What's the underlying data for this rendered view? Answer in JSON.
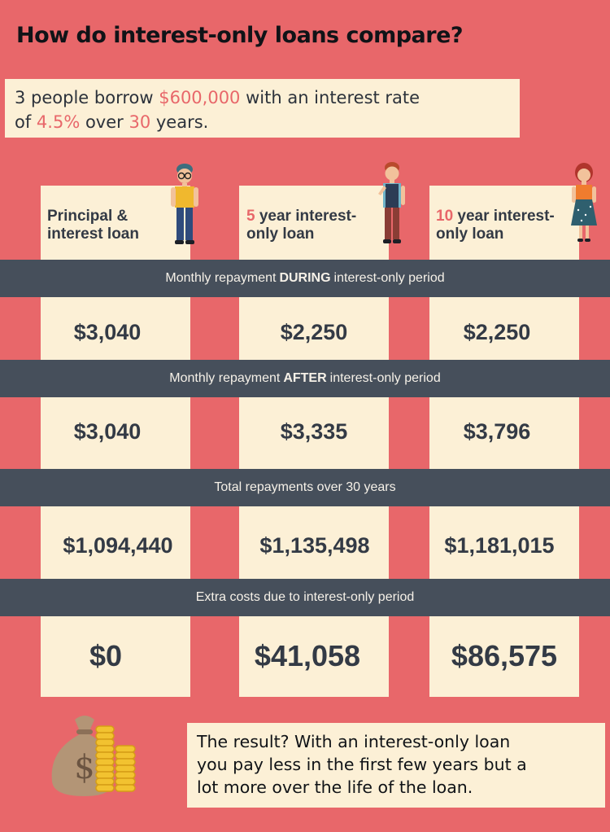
{
  "title": "How do interest-only loans compare?",
  "intro": {
    "part1": "3 people borrow ",
    "amount": "$600,000",
    "part2": " with an interest rate",
    "part3": "of ",
    "rate": "4.5%",
    "part4": " over ",
    "years": "30",
    "part5": " years."
  },
  "columns": {
    "col1": {
      "line1": "Principal &",
      "line2": "interest loan"
    },
    "col2": {
      "accent": "5",
      "line1_rest": " year interest-",
      "line2": "only loan"
    },
    "col3": {
      "accent": "10",
      "line1_rest": " year interest-",
      "line2": "only loan"
    }
  },
  "bands": {
    "during": {
      "pre": "Monthly repayment",
      "bold": "DURING",
      "post": "interest-only period"
    },
    "after": {
      "pre": "Monthly repayment",
      "bold": "AFTER",
      "post": "interest-only period"
    },
    "total": "Total repayments over 30 years",
    "extra": "Extra costs due to interest-only period"
  },
  "rows": {
    "during": [
      "$3,040",
      "$2,250",
      "$2,250"
    ],
    "after": [
      "$3,040",
      "$3,335",
      "$3,796"
    ],
    "total": [
      "$1,094,440",
      "$1,135,498",
      "$1,181,015"
    ],
    "extra": [
      "$0",
      "$41,058",
      "$86,575"
    ]
  },
  "result": {
    "line1": "The result? With an interest-only loan",
    "line2": "you pay less in the first few years but a",
    "line3": "lot more over the life of the loan."
  },
  "colors": {
    "background": "#e8676a",
    "panel": "#fcf0d6",
    "band": "#464f5b",
    "accent": "#e8676a",
    "value_text": "#333a45"
  }
}
